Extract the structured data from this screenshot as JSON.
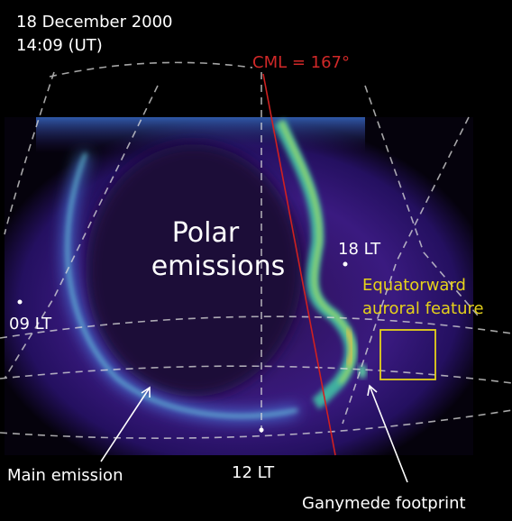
{
  "header": {
    "date": "18 December 2000",
    "time": "14:09 (UT)"
  },
  "annotations": {
    "cml": "CML = 167°",
    "polar_emissions": [
      "Polar",
      "emissions"
    ],
    "lt_18": "18 LT",
    "lt_09": "09 LT",
    "lt_12": "12 LT",
    "equatorward_feature": [
      "Equatorward",
      "auroral feature"
    ],
    "main_emission": "Main emission",
    "ganymede_footprint": "Ganymede footprint"
  }
}
